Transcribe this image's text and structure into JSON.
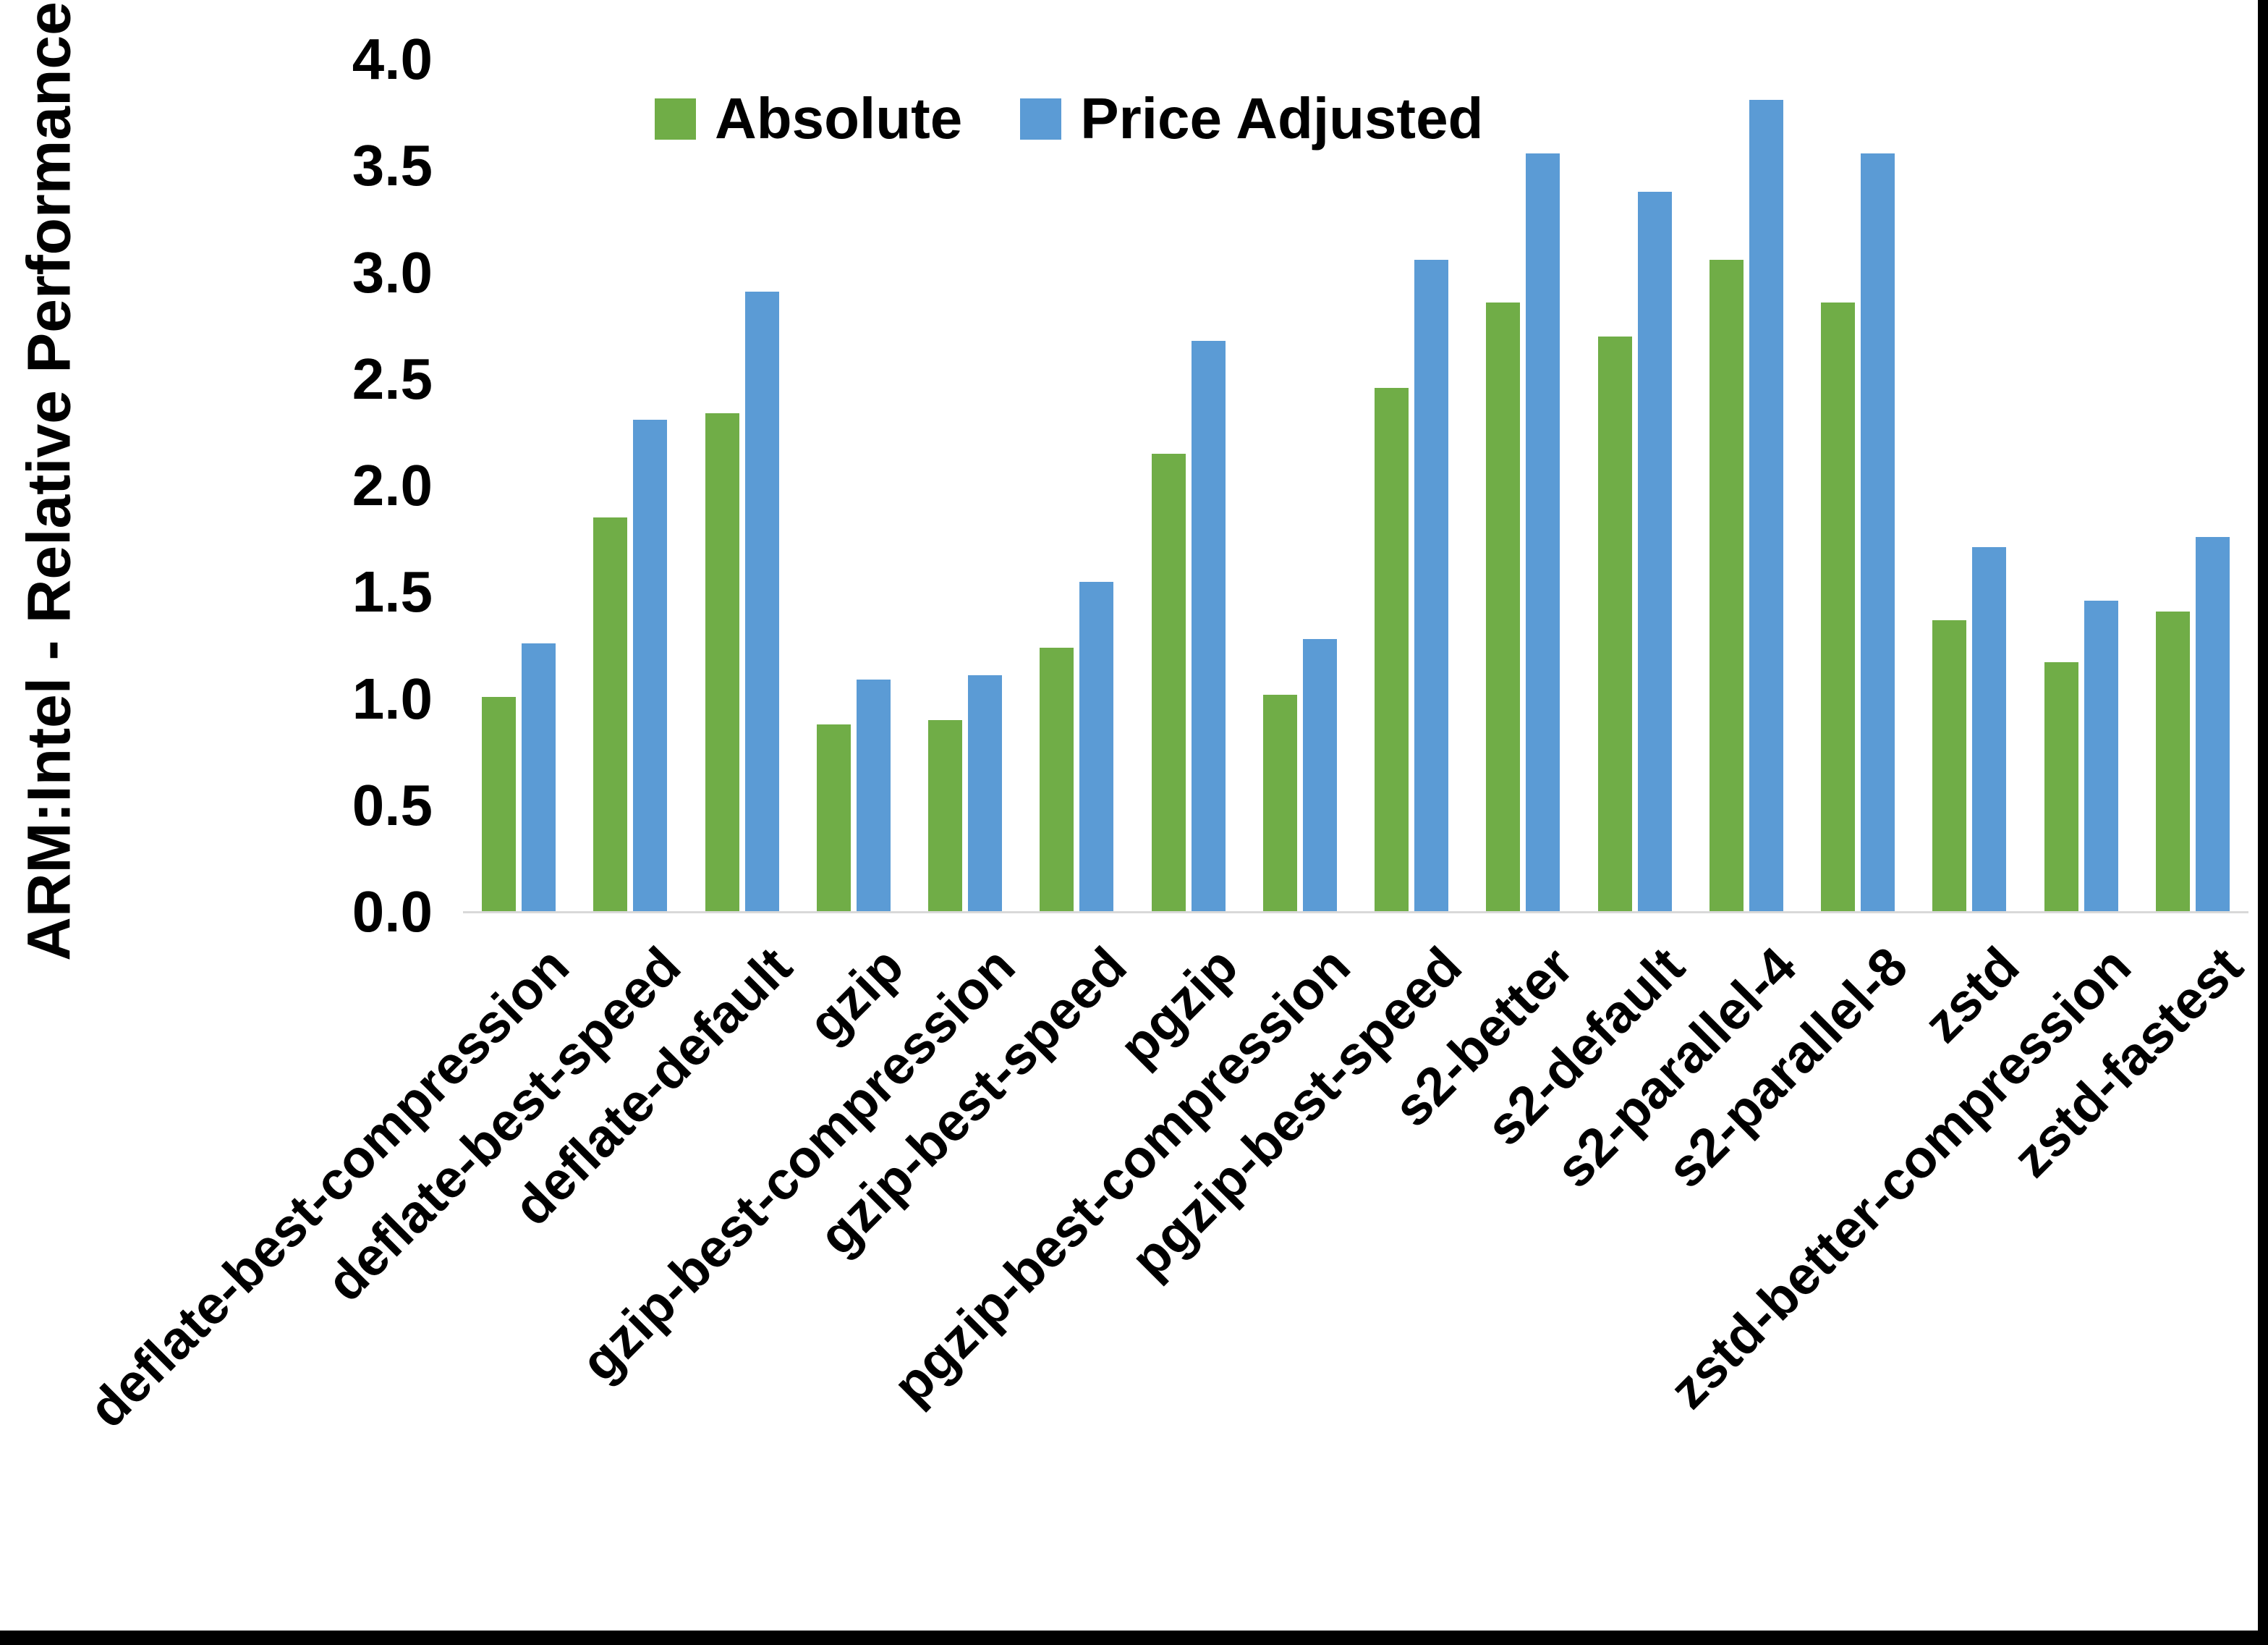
{
  "chart_data": {
    "type": "bar",
    "title": "",
    "xlabel": "",
    "ylabel": "ARM:Intel - Relative Performance",
    "ylim": [
      0.0,
      4.0
    ],
    "ytick_step": 0.5,
    "ytick_decimals": 1,
    "grid": false,
    "legend_position": "top-center",
    "categories": [
      "deflate-best-compression",
      "deflate-best-speed",
      "deflate-default",
      "gzip",
      "gzip-best-compression",
      "gzip-best-speed",
      "pgzip",
      "pgzip-best-compression",
      "pgzip-best-speed",
      "s2-better",
      "s2-default",
      "s2-parallel-4",
      "s2-parallel-8",
      "zstd",
      "zstd-better-compression",
      "zstd-fastest"
    ],
    "series": [
      {
        "name": "Absolute",
        "color": "#70AD47",
        "values": [
          1.01,
          1.85,
          2.34,
          0.88,
          0.9,
          1.24,
          2.15,
          1.02,
          2.46,
          2.86,
          2.7,
          3.06,
          2.86,
          1.37,
          1.17,
          1.41
        ]
      },
      {
        "name": "Price Adjusted",
        "color": "#5B9BD5",
        "values": [
          1.26,
          2.31,
          2.91,
          1.09,
          1.11,
          1.55,
          2.68,
          1.28,
          3.06,
          3.56,
          3.38,
          3.81,
          3.56,
          1.71,
          1.46,
          1.76
        ]
      }
    ]
  },
  "colors": {
    "axis_line": "#d9d9d9",
    "text": "#000000",
    "frame": "#000000",
    "background": "#ffffff"
  }
}
